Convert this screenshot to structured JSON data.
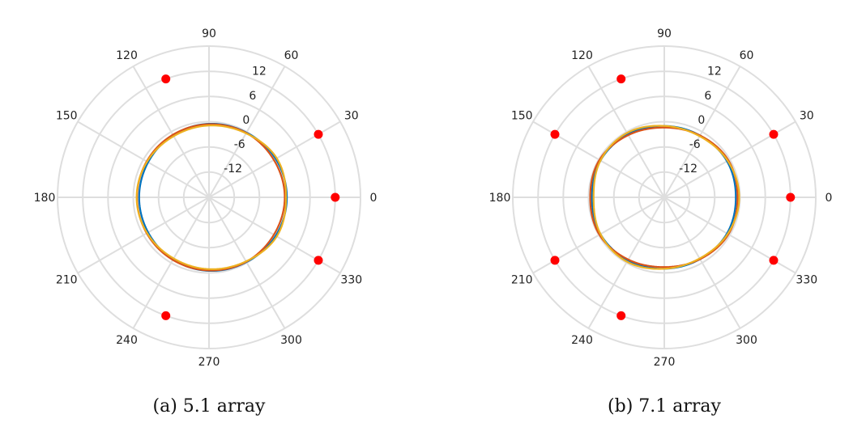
{
  "chart_data": [
    {
      "type": "polar-line",
      "caption": "(a) 5.1 array",
      "angle_ticks": [
        "0",
        "30",
        "60",
        "90",
        "120",
        "150",
        "180",
        "210",
        "240",
        "270",
        "300",
        "330"
      ],
      "radial_ticks": [
        "-12",
        "-6",
        "0",
        "6",
        "12"
      ],
      "rlim": [
        -18,
        18
      ],
      "grid": true,
      "speaker_markers": {
        "color": "#ff0000",
        "r": 12,
        "angles": [
          0,
          30,
          110,
          250,
          330
        ]
      },
      "series": [
        {
          "color": "#0072bd",
          "center_angle": 0,
          "amplitude": 0.55,
          "points": [
            [
              0,
              0.5
            ],
            [
              30,
              0.3
            ],
            [
              60,
              -0.2
            ],
            [
              90,
              -0.5
            ],
            [
              120,
              -0.9
            ],
            [
              150,
              -1.3
            ],
            [
              180,
              -1.4
            ],
            [
              210,
              -1.3
            ],
            [
              240,
              -0.9
            ],
            [
              270,
              -0.5
            ],
            [
              300,
              -0.2
            ],
            [
              330,
              0.3
            ]
          ]
        },
        {
          "color": "#d95319",
          "center_angle": 0,
          "amplitude": 0.45,
          "points": [
            [
              0,
              0.0
            ],
            [
              30,
              -0.2
            ],
            [
              60,
              -0.3
            ],
            [
              90,
              -0.6
            ],
            [
              120,
              -0.8
            ],
            [
              150,
              -0.9
            ],
            [
              180,
              -0.9
            ],
            [
              210,
              -0.9
            ],
            [
              240,
              -0.8
            ],
            [
              270,
              -0.6
            ],
            [
              300,
              -0.3
            ],
            [
              330,
              -0.2
            ]
          ]
        },
        {
          "color": "#edb120",
          "center_angle": 0,
          "amplitude": 0.5,
          "points": [
            [
              0,
              0.3
            ],
            [
              30,
              0.6
            ],
            [
              60,
              -0.4
            ],
            [
              90,
              -0.9
            ],
            [
              120,
              -1.2
            ],
            [
              150,
              -1.0
            ],
            [
              180,
              -0.8
            ],
            [
              210,
              -1.0
            ],
            [
              240,
              -1.2
            ],
            [
              270,
              -0.9
            ],
            [
              300,
              -0.4
            ],
            [
              330,
              0.6
            ]
          ]
        }
      ]
    },
    {
      "type": "polar-line",
      "caption": "(b) 7.1 array",
      "angle_ticks": [
        "0",
        "30",
        "60",
        "90",
        "120",
        "150",
        "180",
        "210",
        "240",
        "270",
        "300",
        "330"
      ],
      "radial_ticks": [
        "-12",
        "-6",
        "0",
        "6",
        "12"
      ],
      "rlim": [
        -18,
        18
      ],
      "grid": true,
      "speaker_markers": {
        "color": "#ff0000",
        "r": 12,
        "angles": [
          0,
          30,
          110,
          150,
          210,
          250,
          330
        ]
      },
      "series": [
        {
          "color": "#0072bd",
          "points": [
            [
              0,
              -1.0
            ],
            [
              30,
              -0.8
            ],
            [
              60,
              -1.0
            ],
            [
              90,
              -1.0
            ],
            [
              120,
              -0.7
            ],
            [
              150,
              -0.5
            ],
            [
              180,
              -0.8
            ],
            [
              210,
              -0.5
            ],
            [
              240,
              -0.7
            ],
            [
              270,
              -1.0
            ],
            [
              300,
              -1.0
            ],
            [
              330,
              -0.8
            ]
          ]
        },
        {
          "color": "#d95319",
          "points": [
            [
              0,
              -0.6
            ],
            [
              30,
              -0.4
            ],
            [
              60,
              -1.0
            ],
            [
              90,
              -1.4
            ],
            [
              120,
              -0.9
            ],
            [
              150,
              -0.2
            ],
            [
              180,
              -0.4
            ],
            [
              210,
              -0.2
            ],
            [
              240,
              -0.9
            ],
            [
              270,
              -1.4
            ],
            [
              300,
              -1.0
            ],
            [
              330,
              -0.4
            ]
          ]
        },
        {
          "color": "#edb120",
          "points": [
            [
              0,
              -0.2
            ],
            [
              30,
              -0.6
            ],
            [
              60,
              -1.2
            ],
            [
              90,
              -1.0
            ],
            [
              120,
              -0.3
            ],
            [
              150,
              -0.5
            ],
            [
              180,
              -1.2
            ],
            [
              210,
              -0.5
            ],
            [
              240,
              -0.3
            ],
            [
              270,
              -1.0
            ],
            [
              300,
              -1.2
            ],
            [
              330,
              -0.6
            ]
          ]
        }
      ]
    }
  ]
}
